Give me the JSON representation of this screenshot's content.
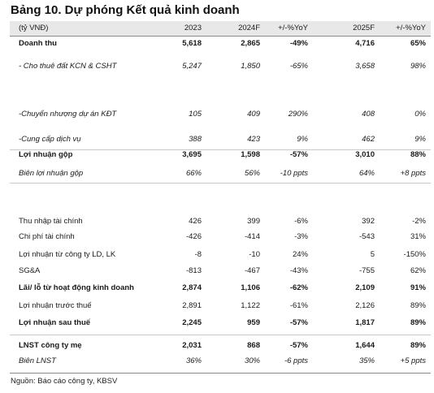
{
  "title": "Bảng 10. Dự phóng Kết quả kinh doanh",
  "header": [
    "(tỷ VNĐ)",
    "2023",
    "2024F",
    "+/-%YoY",
    "2025F",
    "+/-%YoY"
  ],
  "rows": [
    {
      "label": "Doanh thu",
      "v2023": "5,618",
      "v2024": "2,865",
      "yoy2024": "-49%",
      "v2025": "4,716",
      "yoy2025": "65%",
      "style": "bold"
    },
    {
      "label": "- Cho thuê đất KCN & CSHT",
      "v2023": "5,247",
      "v2024": "1,850",
      "yoy2024": "-65%",
      "v2025": "3,658",
      "yoy2025": "98%",
      "style": "italic"
    },
    {
      "label": "-Chuyển nhượng dự án KĐT",
      "v2023": "105",
      "v2024": "409",
      "yoy2024": "290%",
      "v2025": "408",
      "yoy2025": "0%",
      "style": "italic"
    },
    {
      "label": "-Cung cấp dịch vụ",
      "v2023": "388",
      "v2024": "423",
      "yoy2024": "9%",
      "v2025": "462",
      "yoy2025": "9%",
      "style": "italic"
    },
    {
      "label": "Lợi nhuận gộp",
      "v2023": "3,695",
      "v2024": "1,598",
      "yoy2024": "-57%",
      "v2025": "3,010",
      "yoy2025": "88%",
      "style": "bold"
    },
    {
      "label": "Biên lợi nhuận gộp",
      "v2023": "66%",
      "v2024": "56%",
      "yoy2024": "-10 ppts",
      "v2025": "64%",
      "yoy2025": "+8 ppts",
      "style": "italic"
    },
    {
      "label": "Thu nhập tài chính",
      "v2023": "426",
      "v2024": "399",
      "yoy2024": "-6%",
      "v2025": "392",
      "yoy2025": "-2%",
      "style": "normal"
    },
    {
      "label": "Chi phí tài chính",
      "v2023": "-426",
      "v2024": "-414",
      "yoy2024": "-3%",
      "v2025": "-543",
      "yoy2025": "31%",
      "style": "normal"
    },
    {
      "label": "Lợi nhuận từ công ty LD, LK",
      "v2023": "-8",
      "v2024": "-10",
      "yoy2024": "24%",
      "v2025": "5",
      "yoy2025": "-150%",
      "style": "normal"
    },
    {
      "label": "SG&A",
      "v2023": "-813",
      "v2024": "-467",
      "yoy2024": "-43%",
      "v2025": "-755",
      "yoy2025": "62%",
      "style": "normal"
    },
    {
      "label": "Lãi/ lỗ từ hoạt động kinh doanh",
      "v2023": "2,874",
      "v2024": "1,106",
      "yoy2024": "-62%",
      "v2025": "2,109",
      "yoy2025": "91%",
      "style": "bold"
    },
    {
      "label": "Lợi nhuận trước thuế",
      "v2023": "2,891",
      "v2024": "1,122",
      "yoy2024": "-61%",
      "v2025": "2,126",
      "yoy2025": "89%",
      "style": "normal"
    },
    {
      "label": "Lợi nhuận sau thuế",
      "v2023": "2,245",
      "v2024": "959",
      "yoy2024": "-57%",
      "v2025": "1,817",
      "yoy2025": "89%",
      "style": "bold"
    },
    {
      "label": "LNST công ty mẹ",
      "v2023": "2,031",
      "v2024": "868",
      "yoy2024": "-57%",
      "v2025": "1,644",
      "yoy2025": "89%",
      "style": "bold"
    },
    {
      "label": "Biên LNST",
      "v2023": "36%",
      "v2024": "30%",
      "yoy2024": "-6 ppts",
      "v2025": "35%",
      "yoy2025": "+5 ppts",
      "style": "italic"
    }
  ],
  "source": "Nguồn: Báo cáo công ty, KBSV"
}
